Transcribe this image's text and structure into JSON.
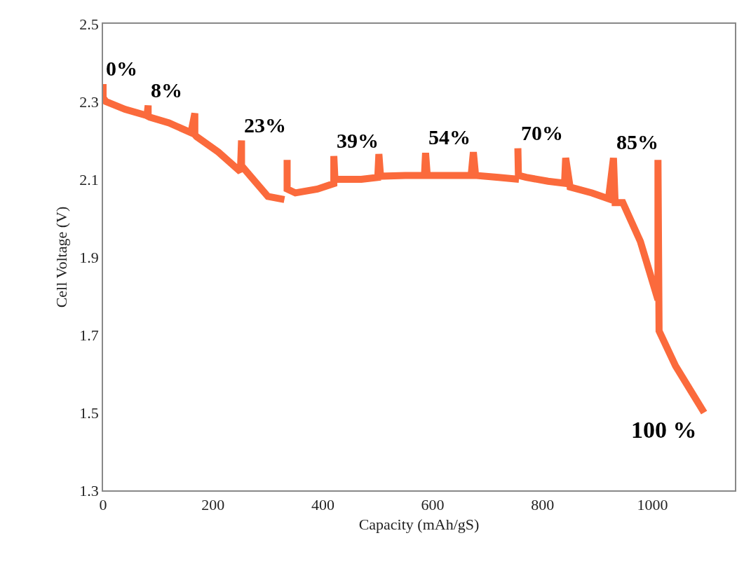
{
  "chart_data": {
    "type": "line",
    "xlabel": "Capacity (mAh/gS)",
    "ylabel": "Cell Voltage (V)",
    "xlim": [
      0,
      1150
    ],
    "xticks": [
      0,
      200,
      400,
      600,
      800,
      1000
    ],
    "ylim": [
      1.3,
      2.5
    ],
    "yticks": [
      1.3,
      1.5,
      1.7,
      1.9,
      2.1,
      2.3,
      2.5
    ],
    "grid": false,
    "marker": "none",
    "line_style": "solid",
    "series": [
      {
        "color": "#fb6a3c",
        "x": [
          0,
          0,
          5,
          40,
          80,
          82,
          82,
          85,
          120,
          160,
          167,
          167,
          170,
          210,
          250,
          252,
          252,
          255,
          300,
          330,
          null,
          335,
          335,
          350,
          390,
          420,
          420,
          422,
          430,
          470,
          500,
          502,
          505,
          550,
          585,
          587,
          590,
          630,
          670,
          674,
          678,
          720,
          757,
          null,
          755,
          756,
          770,
          810,
          840,
          842,
          850,
          890,
          920,
          929,
          932,
          946,
          978,
          1010,
          1010,
          1012,
          1042,
          1094
        ],
        "values": [
          2.345,
          2.31,
          2.3,
          2.28,
          2.264,
          2.29,
          2.262,
          2.26,
          2.245,
          2.22,
          2.27,
          2.215,
          2.21,
          2.17,
          2.12,
          2.2,
          2.13,
          2.13,
          2.056,
          2.048,
          null,
          2.15,
          2.075,
          2.065,
          2.075,
          2.089,
          2.16,
          2.1,
          2.1,
          2.1,
          2.105,
          2.165,
          2.108,
          2.11,
          2.11,
          2.168,
          2.11,
          2.11,
          2.11,
          2.17,
          2.11,
          2.105,
          2.1,
          null,
          2.18,
          2.11,
          2.105,
          2.095,
          2.09,
          2.155,
          2.08,
          2.065,
          2.05,
          2.155,
          2.04,
          2.04,
          1.94,
          1.79,
          2.15,
          1.71,
          1.62,
          1.5
        ]
      }
    ],
    "annotations": [
      {
        "text": "0%",
        "x": 0,
        "y": 2.345
      },
      {
        "text": "8%",
        "x": 82,
        "y": 2.29
      },
      {
        "text": "23%",
        "x": 252,
        "y": 2.2
      },
      {
        "text": "39%",
        "x": 420,
        "y": 2.16
      },
      {
        "text": "54%",
        "x": 587,
        "y": 2.168
      },
      {
        "text": "70%",
        "x": 755,
        "y": 2.18
      },
      {
        "text": "85%",
        "x": 929,
        "y": 2.155
      },
      {
        "text": "100 %",
        "x": 1094,
        "y": 1.5
      }
    ]
  }
}
